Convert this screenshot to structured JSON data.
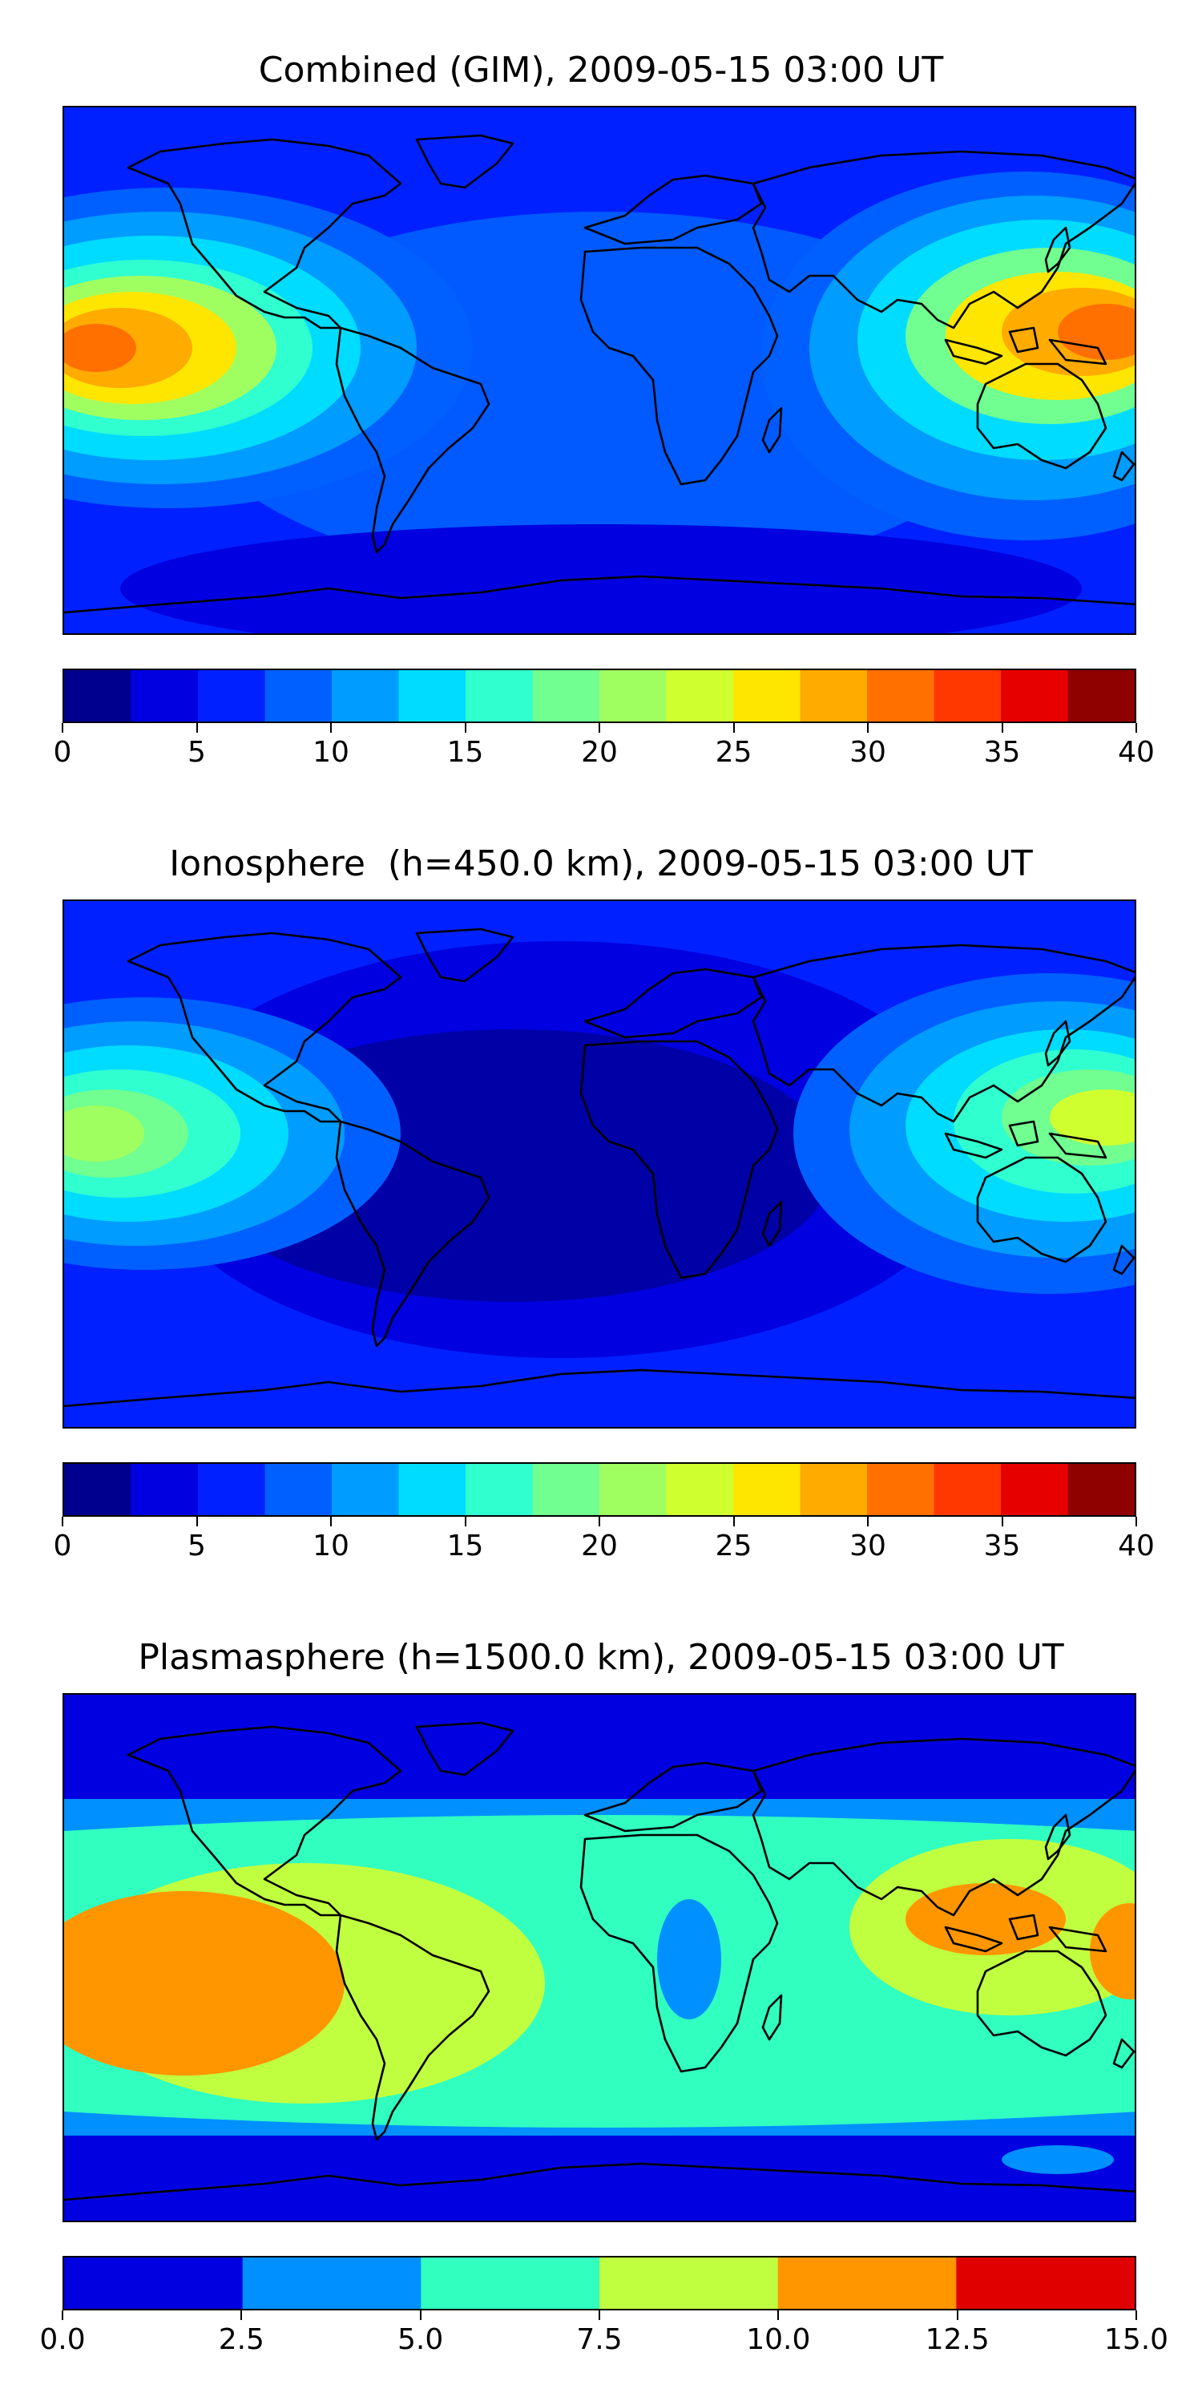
{
  "panels": [
    {
      "title": "Combined (GIM), 2009-05-15 03:00 UT",
      "colorbar": {
        "ticks": [
          "0",
          "5",
          "10",
          "15",
          "20",
          "25",
          "30",
          "35",
          "40"
        ],
        "tick_values": [
          0,
          5,
          10,
          15,
          20,
          25,
          30,
          35,
          40
        ],
        "min": 0,
        "max": 40,
        "levels": [
          "#00008f",
          "#0000e0",
          "#0020ff",
          "#0060ff",
          "#009cff",
          "#00dcff",
          "#30ffd0",
          "#70ff90",
          "#a0ff60",
          "#d0ff30",
          "#ffe600",
          "#ffab00",
          "#ff7000",
          "#ff3800",
          "#e60000",
          "#8f0000"
        ]
      }
    },
    {
      "title": "Ionosphere  (h=450.0 km), 2009-05-15 03:00 UT",
      "colorbar": {
        "ticks": [
          "0",
          "5",
          "10",
          "15",
          "20",
          "25",
          "30",
          "35",
          "40"
        ],
        "tick_values": [
          0,
          5,
          10,
          15,
          20,
          25,
          30,
          35,
          40
        ],
        "min": 0,
        "max": 40,
        "levels": [
          "#00008f",
          "#0000e0",
          "#0020ff",
          "#0060ff",
          "#009cff",
          "#00dcff",
          "#30ffd0",
          "#70ff90",
          "#a0ff60",
          "#d0ff30",
          "#ffe600",
          "#ffab00",
          "#ff7000",
          "#ff3800",
          "#e60000",
          "#8f0000"
        ]
      }
    },
    {
      "title": "Plasmasphere (h=1500.0 km), 2009-05-15 03:00 UT",
      "colorbar": {
        "ticks": [
          "0.0",
          "2.5",
          "5.0",
          "7.5",
          "10.0",
          "12.5",
          "15.0"
        ],
        "tick_values": [
          0,
          2.5,
          5,
          7.5,
          10,
          12.5,
          15
        ],
        "min": 0,
        "max": 15,
        "levels": [
          "#0000e0",
          "#0090ff",
          "#30ffc0",
          "#c0ff40",
          "#ff9600",
          "#e00000"
        ]
      }
    }
  ]
}
